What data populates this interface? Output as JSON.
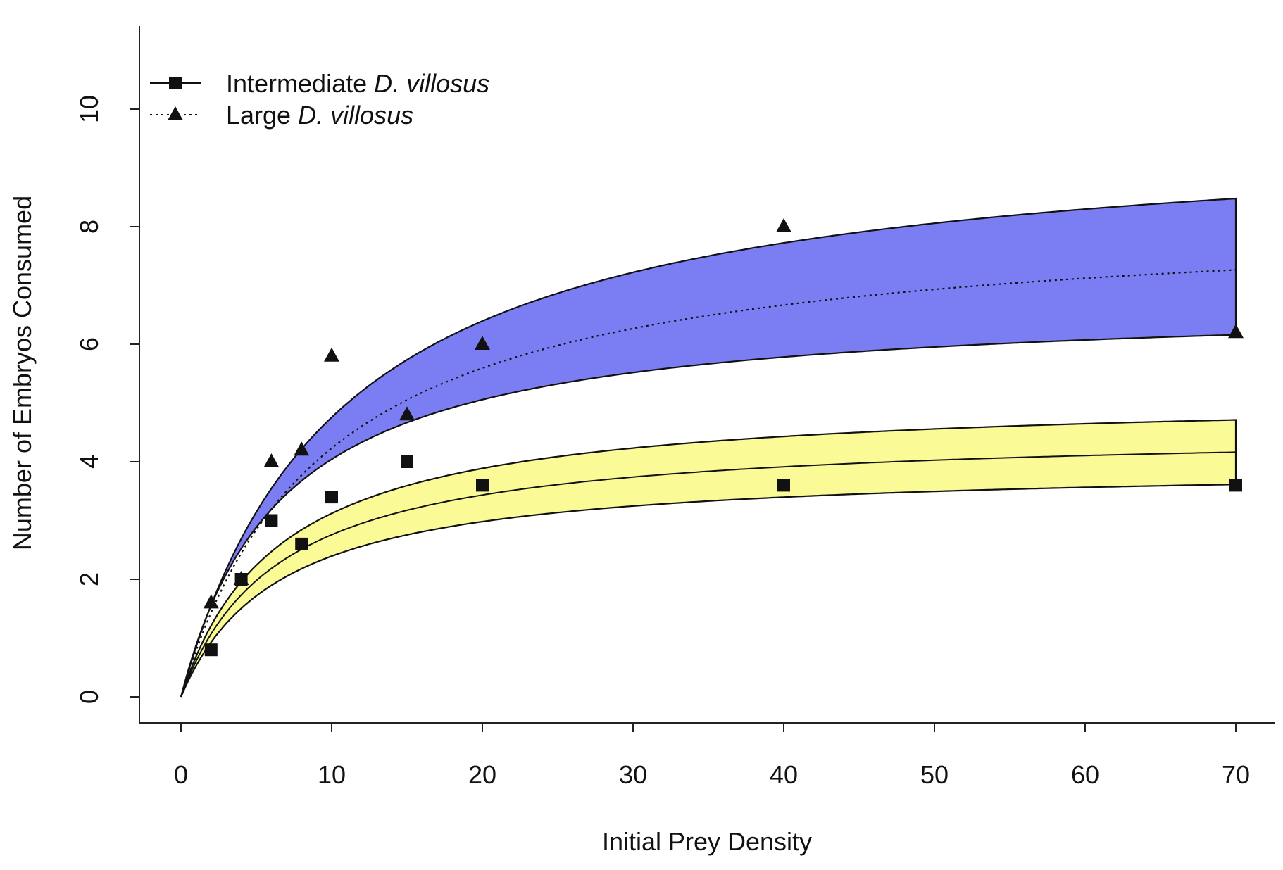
{
  "chart_data": {
    "type": "scatter",
    "title": "",
    "xlabel": "Initial Prey Density",
    "ylabel": "Number of Embryos Consumed",
    "xlim": [
      -2.8,
      72.8
    ],
    "ylim": [
      -0.45,
      11.4
    ],
    "xticks": [
      "0",
      "10",
      "20",
      "30",
      "40",
      "50",
      "60",
      "70"
    ],
    "yticks": [
      "0",
      "2",
      "4",
      "6",
      "8",
      "10"
    ],
    "grid": false,
    "legend_position": "top-left",
    "legend": [
      {
        "label": "Intermediate ",
        "label_italic": "D. villosus",
        "marker": "square",
        "line": "solid"
      },
      {
        "label": "Large ",
        "label_italic": "D. villosus",
        "marker": "triangle",
        "line": "dotted"
      }
    ],
    "series": [
      {
        "name": "Intermediate D. villosus",
        "marker": "square",
        "fill_color": "#fafa96",
        "points": [
          [
            2,
            0.8
          ],
          [
            4,
            2.0
          ],
          [
            6,
            3.0
          ],
          [
            8,
            2.6
          ],
          [
            10,
            3.4
          ],
          [
            15,
            4.0
          ],
          [
            20,
            3.6
          ],
          [
            40,
            3.6
          ],
          [
            70,
            3.6
          ]
        ],
        "fit": {
          "a": 4.55,
          "h": 6.5
        },
        "band_upper": {
          "a": 5.15,
          "h": 6.5
        },
        "band_lower": {
          "a": 3.95,
          "h": 6.5
        }
      },
      {
        "name": "Large D. villosus",
        "marker": "triangle",
        "fill_color": "#7b7ef2",
        "points": [
          [
            2,
            1.6
          ],
          [
            4,
            2.0
          ],
          [
            6,
            4.0
          ],
          [
            8,
            4.2
          ],
          [
            10,
            5.8
          ],
          [
            15,
            4.8
          ],
          [
            20,
            6.0
          ],
          [
            40,
            8.0
          ],
          [
            70,
            6.2
          ]
        ],
        "fit": {
          "a": 8.25,
          "h": 9.5
        },
        "band_upper": {
          "a": 9.75,
          "h": 10.5
        },
        "band_lower": {
          "a": 6.75,
          "h": 6.7
        }
      }
    ]
  }
}
